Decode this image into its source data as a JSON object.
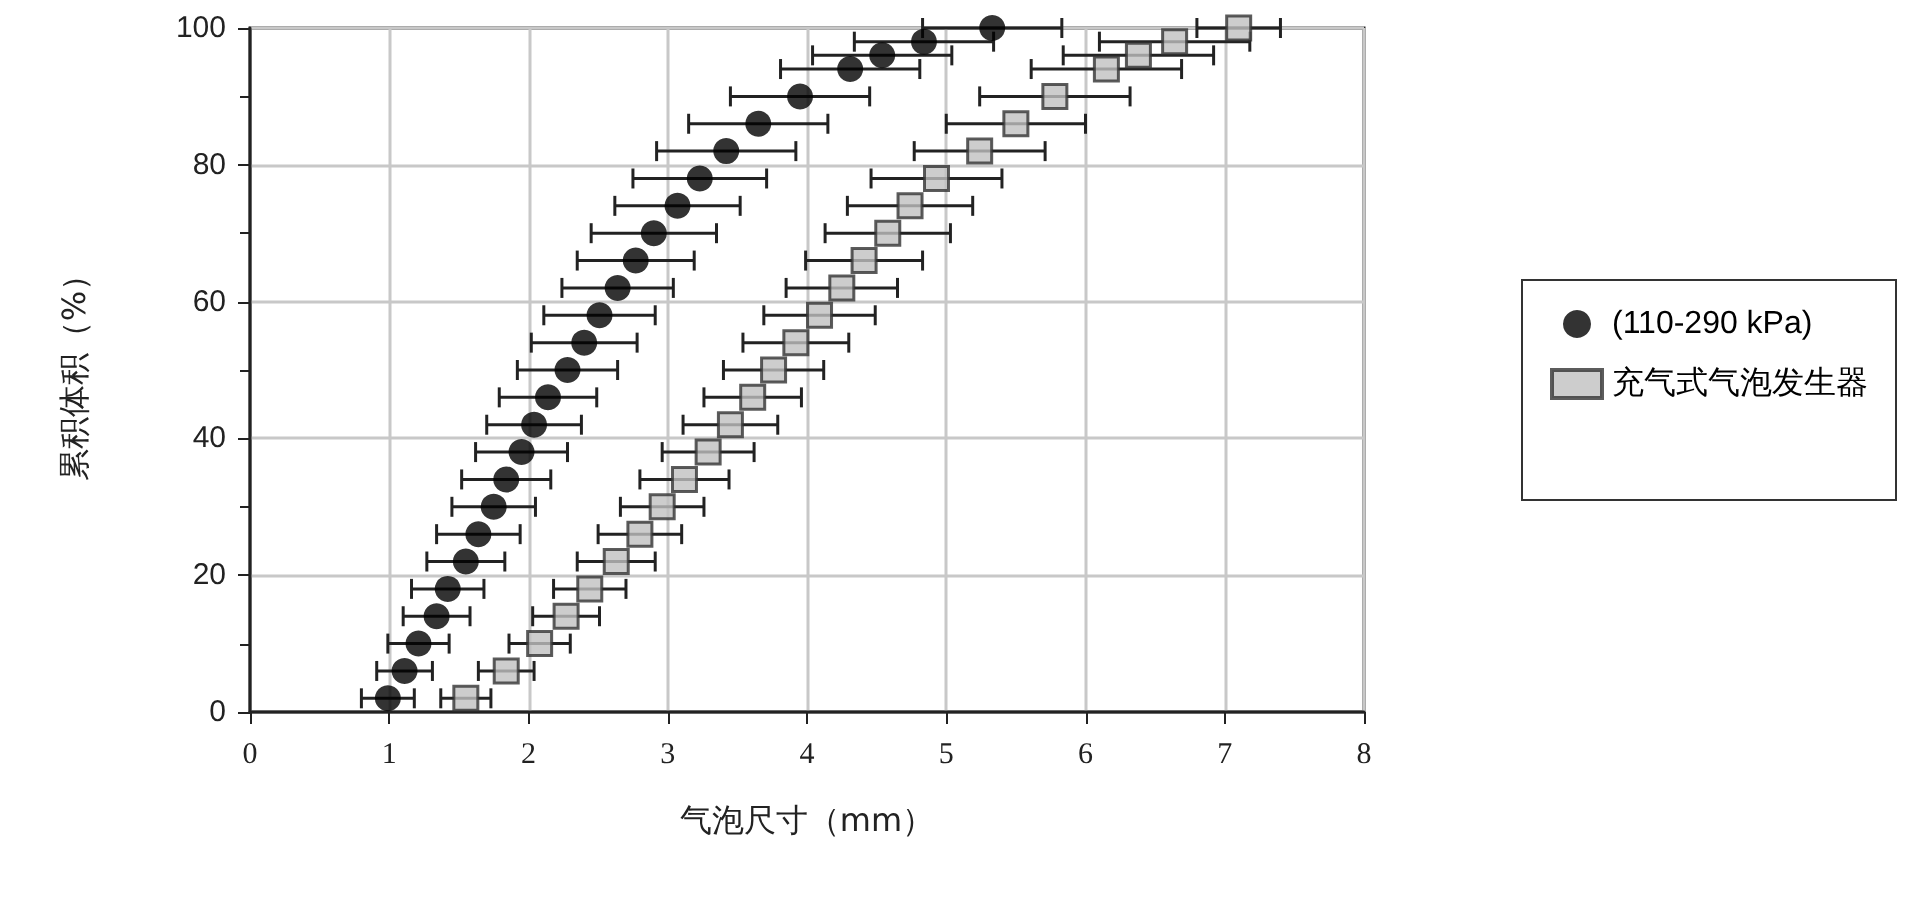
{
  "chart_data": {
    "type": "scatter",
    "xlabel": "气泡尺寸（mm）",
    "ylabel": "累积体积（%）",
    "xlim": [
      0,
      8
    ],
    "xticks": [
      0,
      1,
      2,
      3,
      4,
      5,
      6,
      7,
      8
    ],
    "ylim": [
      0,
      100
    ],
    "yticks": [
      0,
      20,
      40,
      60,
      80,
      100
    ],
    "grid": true,
    "legend": "right",
    "series": [
      {
        "name": "(110-290 kPa)",
        "color": "#000000",
        "marker": "circle",
        "x": [
          0.99,
          1.11,
          1.21,
          1.34,
          1.42,
          1.55,
          1.64,
          1.75,
          1.84,
          1.95,
          2.04,
          2.14,
          2.28,
          2.4,
          2.51,
          2.64,
          2.77,
          2.9,
          3.07,
          3.23,
          3.42,
          3.65,
          3.95,
          4.31,
          4.54,
          4.84,
          5.33
        ],
        "values": [
          2,
          6,
          10,
          14,
          18,
          22,
          26,
          30,
          34,
          38,
          42,
          46,
          50,
          54,
          58,
          62,
          66,
          70,
          74,
          78,
          82,
          86,
          90,
          94,
          96,
          98,
          100
        ],
        "xerrors": [
          0.19,
          0.2,
          0.22,
          0.24,
          0.26,
          0.28,
          0.3,
          0.3,
          0.32,
          0.33,
          0.34,
          0.35,
          0.36,
          0.38,
          0.4,
          0.4,
          0.42,
          0.45,
          0.45,
          0.48,
          0.5,
          0.5,
          0.5,
          0.5,
          0.5,
          0.5,
          0.5
        ]
      },
      {
        "name": "充气式气泡发生器",
        "color": "#c0c0c0",
        "marker": "square",
        "x": [
          1.55,
          1.84,
          2.08,
          2.27,
          2.44,
          2.63,
          2.8,
          2.96,
          3.12,
          3.29,
          3.45,
          3.61,
          3.76,
          3.92,
          4.09,
          4.25,
          4.41,
          4.58,
          4.74,
          4.93,
          5.24,
          5.5,
          5.78,
          6.15,
          6.38,
          6.64,
          7.1
        ],
        "values": [
          2,
          6,
          10,
          14,
          18,
          22,
          26,
          30,
          34,
          38,
          42,
          46,
          50,
          54,
          58,
          62,
          66,
          70,
          74,
          78,
          82,
          86,
          90,
          94,
          96,
          98,
          100
        ],
        "xerrors": [
          0.18,
          0.2,
          0.22,
          0.24,
          0.26,
          0.28,
          0.3,
          0.3,
          0.32,
          0.33,
          0.34,
          0.35,
          0.36,
          0.38,
          0.4,
          0.4,
          0.42,
          0.45,
          0.45,
          0.47,
          0.47,
          0.5,
          0.54,
          0.54,
          0.54,
          0.54,
          0.3
        ]
      }
    ]
  }
}
